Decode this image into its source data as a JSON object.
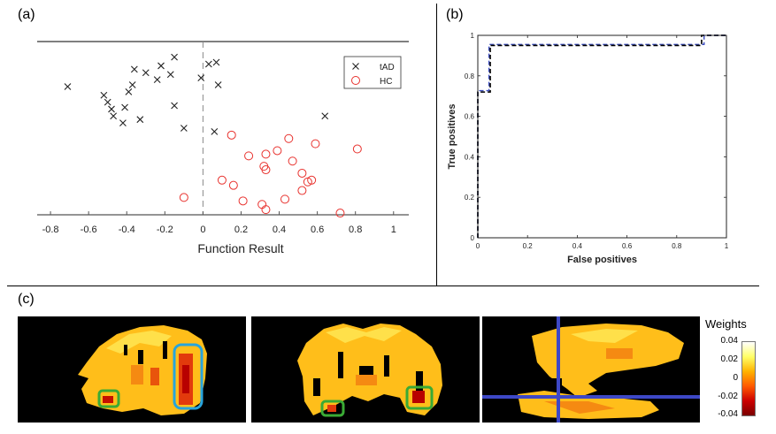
{
  "panels": {
    "a": {
      "label": "(a)",
      "chart_data": {
        "type": "scatter",
        "xlabel": "Function Result",
        "xlim": [
          -0.87,
          1.08
        ],
        "xticks": [
          -0.8,
          -0.6,
          -0.4,
          -0.2,
          0,
          0.2,
          0.4,
          0.6,
          0.8,
          1
        ],
        "xtick_labels": [
          "-0.8",
          "-0.6",
          "-0.4",
          "-0.2",
          "0",
          "0.2",
          "0.4",
          "0.6",
          "0.8",
          "1"
        ],
        "ylim": [
          0,
          1
        ],
        "grid": false,
        "legend_position": "top-right",
        "vline_x": 0,
        "series": [
          {
            "name": "tAD",
            "marker": "x",
            "color": "#222222",
            "points": [
              [
                -0.71,
                0.74
              ],
              [
                -0.52,
                0.69
              ],
              [
                -0.5,
                0.65
              ],
              [
                -0.48,
                0.61
              ],
              [
                -0.47,
                0.57
              ],
              [
                -0.42,
                0.53
              ],
              [
                -0.41,
                0.62
              ],
              [
                -0.39,
                0.71
              ],
              [
                -0.37,
                0.75
              ],
              [
                -0.36,
                0.84
              ],
              [
                -0.33,
                0.55
              ],
              [
                -0.3,
                0.82
              ],
              [
                -0.24,
                0.78
              ],
              [
                -0.22,
                0.86
              ],
              [
                -0.17,
                0.81
              ],
              [
                -0.15,
                0.91
              ],
              [
                -0.15,
                0.63
              ],
              [
                -0.1,
                0.5
              ],
              [
                -0.01,
                0.79
              ],
              [
                0.03,
                0.87
              ],
              [
                0.06,
                0.48
              ],
              [
                0.07,
                0.88
              ],
              [
                0.08,
                0.75
              ],
              [
                0.64,
                0.57
              ]
            ]
          },
          {
            "name": "HC",
            "marker": "o",
            "color": "#e8312d",
            "points": [
              [
                0.15,
                0.46
              ],
              [
                0.24,
                0.34
              ],
              [
                0.33,
                0.35
              ],
              [
                0.39,
                0.37
              ],
              [
                0.45,
                0.44
              ],
              [
                0.47,
                0.31
              ],
              [
                0.59,
                0.41
              ],
              [
                0.81,
                0.38
              ],
              [
                0.33,
                0.26
              ],
              [
                0.32,
                0.28
              ],
              [
                0.52,
                0.24
              ],
              [
                0.55,
                0.19
              ],
              [
                0.57,
                0.2
              ],
              [
                0.1,
                0.2
              ],
              [
                0.16,
                0.17
              ],
              [
                0.52,
                0.14
              ],
              [
                -0.1,
                0.1
              ],
              [
                0.21,
                0.08
              ],
              [
                0.31,
                0.06
              ],
              [
                0.33,
                0.03
              ],
              [
                0.43,
                0.09
              ],
              [
                0.72,
                0.01
              ]
            ]
          }
        ]
      }
    },
    "b": {
      "label": "(b)",
      "chart_data": {
        "type": "line",
        "xlabel": "False positives",
        "ylabel": "True positives",
        "xlim": [
          0,
          1
        ],
        "ylim": [
          0,
          1
        ],
        "xticks": [
          0,
          0.2,
          0.4,
          0.6,
          0.8,
          1
        ],
        "xtick_labels": [
          "0",
          "0.2",
          "0.4",
          "0.6",
          "0.8",
          "1"
        ],
        "yticks": [
          0,
          0.2,
          0.4,
          0.6,
          0.8,
          1
        ],
        "ytick_labels": [
          "0",
          "0.2",
          "0.4",
          "0.6",
          "0.8",
          "1"
        ],
        "grid": false,
        "series": [
          {
            "style": "dashed",
            "color": "#3a4cc0",
            "x": [
              0,
              0,
              0.045,
              0.045,
              0.91,
              0.91,
              1
            ],
            "y": [
              0,
              0.727,
              0.727,
              0.955,
              0.955,
              1,
              1
            ]
          },
          {
            "style": "dashed",
            "color": "#000000",
            "x": [
              0,
              0,
              0.05,
              0.05,
              0.9,
              0.9,
              1
            ],
            "y": [
              0,
              0.72,
              0.72,
              0.95,
              0.95,
              1,
              1
            ]
          }
        ]
      }
    },
    "c": {
      "label": "(c)",
      "images": [
        {
          "name": "sagittal-slice"
        },
        {
          "name": "coronal-slice"
        },
        {
          "name": "axial-slice"
        }
      ],
      "colorbar": {
        "title": "Weights",
        "ticks": [
          "0.04",
          "0.02",
          "0",
          "-0.02",
          "-0.04"
        ],
        "colors": [
          "#ffffff",
          "#ffff66",
          "#ffb300",
          "#ff5a00",
          "#cc0000",
          "#7a0000"
        ]
      }
    }
  }
}
